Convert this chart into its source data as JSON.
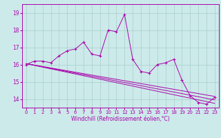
{
  "xlabel": "Windchill (Refroidissement éolien,°C)",
  "bg_color": "#cceaea",
  "grid_color": "#aacccc",
  "line_color": "#aa00aa",
  "xlim": [
    -0.5,
    23.5
  ],
  "ylim": [
    13.5,
    19.5
  ],
  "yticks": [
    14,
    15,
    16,
    17,
    18,
    19
  ],
  "xticks": [
    0,
    1,
    2,
    3,
    4,
    5,
    6,
    7,
    8,
    9,
    10,
    11,
    12,
    13,
    14,
    15,
    16,
    17,
    18,
    19,
    20,
    21,
    22,
    23
  ],
  "main_line_x": [
    0,
    1,
    2,
    3,
    4,
    5,
    6,
    7,
    8,
    9,
    10,
    11,
    12,
    13,
    14,
    15,
    16,
    17,
    18,
    19,
    20,
    21,
    22,
    23
  ],
  "main_line_y": [
    16.0,
    16.2,
    16.2,
    16.1,
    16.5,
    16.8,
    16.9,
    17.3,
    16.6,
    16.5,
    18.0,
    17.9,
    18.9,
    16.3,
    15.6,
    15.5,
    16.0,
    16.1,
    16.3,
    15.1,
    14.2,
    13.8,
    13.7,
    14.1
  ],
  "line2_x": [
    0,
    23
  ],
  "line2_y": [
    16.05,
    14.15
  ],
  "line3_x": [
    0,
    23
  ],
  "line3_y": [
    16.05,
    13.95
  ],
  "line4_x": [
    0,
    23
  ],
  "line4_y": [
    16.05,
    13.75
  ],
  "tick_fontsize": 5.0,
  "xlabel_fontsize": 5.5
}
